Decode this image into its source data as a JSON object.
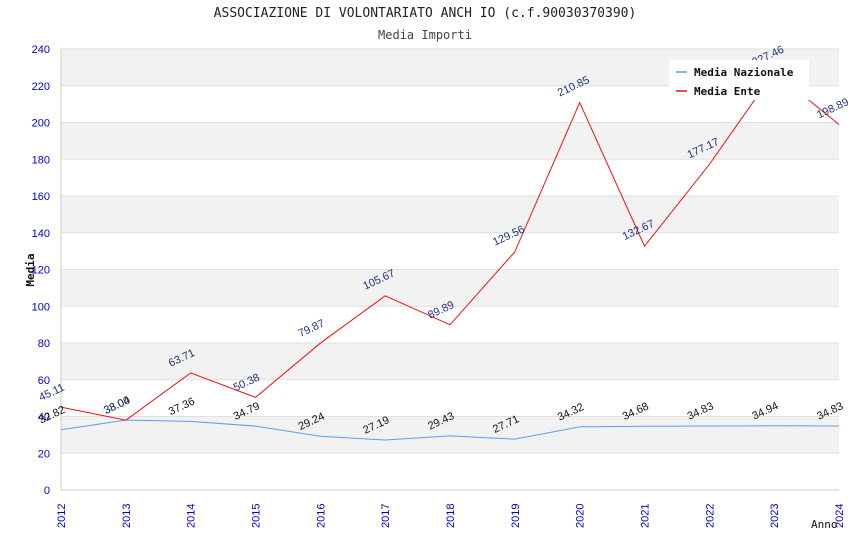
{
  "title": "ASSOCIAZIONE DI VOLONTARIATO ANCH IO (c.f.90030370390)",
  "subtitle": "Media Importi",
  "chart_data": {
    "type": "line",
    "title": "ASSOCIAZIONE DI VOLONTARIATO ANCH IO (c.f.90030370390)",
    "subtitle": "Media Importi",
    "xlabel": "Anno",
    "ylabel": "Media",
    "ylim": [
      0,
      240
    ],
    "yticks": [
      0,
      20,
      40,
      60,
      80,
      100,
      120,
      140,
      160,
      180,
      200,
      220,
      240
    ],
    "grid": true,
    "legend_position": "top-right",
    "x": [
      "2012",
      "2013",
      "2014",
      "2015",
      "2016",
      "2017",
      "2018",
      "2019",
      "2020",
      "2021",
      "2022",
      "2023",
      "2024"
    ],
    "series": [
      {
        "name": "Media Nazionale",
        "color": "#5aa0e6",
        "label_color": "#111111",
        "values": [
          32.82,
          38.04,
          37.36,
          34.79,
          29.24,
          27.19,
          29.43,
          27.71,
          34.32,
          34.68,
          34.83,
          34.94,
          34.83
        ]
      },
      {
        "name": "Media Ente",
        "color": "#ee1111",
        "label_color": "#22337a",
        "values": [
          45.11,
          38.0,
          63.71,
          50.38,
          79.87,
          105.67,
          89.89,
          129.56,
          210.85,
          132.67,
          177.17,
          227.46,
          198.89
        ]
      }
    ]
  }
}
